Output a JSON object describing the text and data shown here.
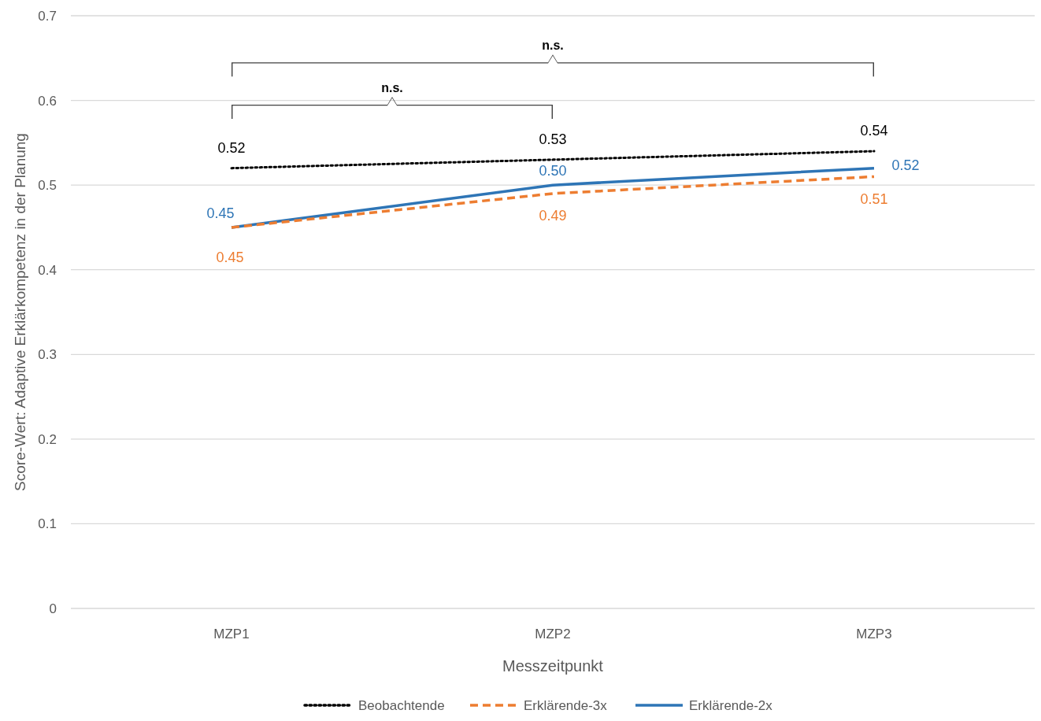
{
  "chart_data": {
    "type": "line",
    "xlabel": "Messzeitpunkt",
    "ylabel": "Score-Wert: Adaptive Erklärkompetenz in der Planung",
    "categories": [
      "MZP1",
      "MZP2",
      "MZP3"
    ],
    "series": [
      {
        "name": "Beobachtende",
        "color": "#000000",
        "values": [
          0.52,
          0.53,
          0.54
        ],
        "value_labels": [
          "0.52",
          "0.53",
          "0.54"
        ],
        "line_style": "dotted"
      },
      {
        "name": "Erklärende-3x",
        "color": "#ed7d31",
        "values": [
          0.45,
          0.49,
          0.51
        ],
        "value_labels": [
          "0.45",
          "0.49",
          "0.51"
        ],
        "line_style": "dashed"
      },
      {
        "name": "Erklärende-2x",
        "color": "#2e75b6",
        "values": [
          0.45,
          0.5,
          0.52
        ],
        "value_labels": [
          "0.45",
          "0.50",
          "0.52"
        ],
        "line_style": "solid"
      }
    ],
    "ylim": [
      0,
      0.7
    ],
    "yticks": [
      0,
      0.1,
      0.2,
      0.3,
      0.4,
      0.5,
      0.6,
      0.7
    ],
    "grid": "y",
    "legend": "bottom",
    "marker": "none",
    "annotations": [
      "n.s.",
      "n.s."
    ]
  }
}
